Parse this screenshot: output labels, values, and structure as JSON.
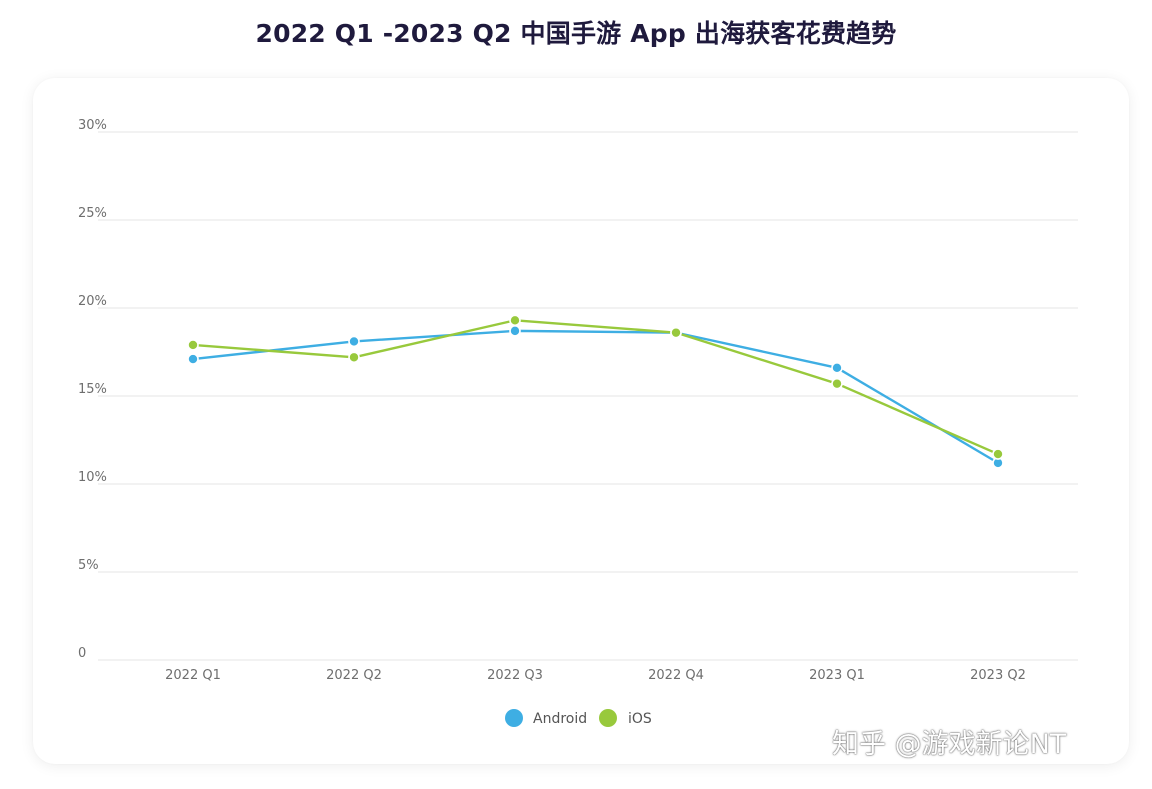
{
  "title": "2022 Q1 -2023 Q2 中国手游 App 出海获客花费趋势",
  "watermark": "知乎 @游戏新论NT",
  "colors": {
    "android": "#3eaee3",
    "ios": "#98c93c",
    "grid": "#e4e4e4",
    "title": "#1f1a3d"
  },
  "chart_data": {
    "type": "line",
    "title": "2022 Q1 -2023 Q2 中国手游 App 出海获客花费趋势",
    "xlabel": "",
    "ylabel": "",
    "categories": [
      "2022 Q1",
      "2022 Q2",
      "2022 Q3",
      "2022 Q4",
      "2023 Q1",
      "2023 Q2"
    ],
    "y_ticks": [
      0,
      5,
      10,
      15,
      20,
      25,
      30
    ],
    "y_tick_labels": [
      "0",
      "5%",
      "10%",
      "15%",
      "20%",
      "25%",
      "30%"
    ],
    "ylim": [
      0,
      30
    ],
    "grid": true,
    "legend_position": "bottom-center",
    "series": [
      {
        "name": "Android",
        "color": "#3eaee3",
        "values": [
          17.1,
          18.1,
          18.7,
          18.6,
          16.6,
          11.2
        ]
      },
      {
        "name": "iOS",
        "color": "#98c93c",
        "values": [
          17.9,
          17.2,
          19.3,
          18.6,
          15.7,
          11.7
        ]
      }
    ]
  }
}
